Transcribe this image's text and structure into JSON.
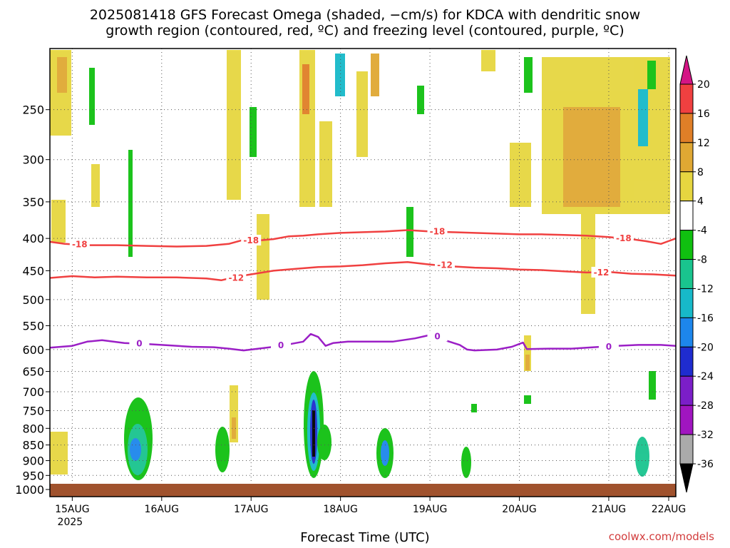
{
  "title_line1": "2025081418 GFS Forecast Omega (shaded, −cm/s) for KDCA with dendritic snow",
  "title_line2": "growth region (contoured, red, ºC) and freezing level (contoured, purple, ºC)",
  "xlabel": "Forecast Time (UTC)",
  "credit": "coolwx.com/models",
  "colors": {
    "snow_contour": "#f04040",
    "freezing_contour": "#9b1fc6",
    "ground": "#a0522d",
    "grid": "#555555"
  },
  "chart_data": {
    "type": "heatmap",
    "title": "2025081418 GFS Forecast Omega (shaded, −cm/s) for KDCA with dendritic snow growth region (contoured, red, ºC) and freezing level (contoured, purple, ºC)",
    "xlabel": "Forecast Time (UTC)",
    "ylabel": "",
    "x_range_hours": [
      0,
      168
    ],
    "y_range_hPa": [
      1000,
      200
    ],
    "y_scale": "log-pressure",
    "grid": true,
    "x_ticks": [
      {
        "label": "15AUG",
        "sub": "2025",
        "hour": 6
      },
      {
        "label": "16AUG",
        "sub": "",
        "hour": 30
      },
      {
        "label": "17AUG",
        "sub": "",
        "hour": 54
      },
      {
        "label": "18AUG",
        "sub": "",
        "hour": 78
      },
      {
        "label": "19AUG",
        "sub": "",
        "hour": 102
      },
      {
        "label": "20AUG",
        "sub": "",
        "hour": 126
      },
      {
        "label": "21AUG",
        "sub": "",
        "hour": 150
      },
      {
        "label": "22AUG",
        "sub": "",
        "hour": 174
      }
    ],
    "y_ticks": [
      250,
      300,
      350,
      400,
      450,
      500,
      550,
      600,
      650,
      700,
      750,
      800,
      850,
      900,
      950,
      1000
    ],
    "colorbar": {
      "labels": [
        "20",
        "16",
        "12",
        "8",
        "4",
        "-4",
        "-8",
        "-12",
        "-16",
        "-20",
        "-24",
        "-28",
        "-32",
        "-36"
      ],
      "bins": [
        {
          "color": "#d41585"
        },
        {
          "color": "#f04040"
        },
        {
          "color": "#e07f27"
        },
        {
          "color": "#e0a833"
        },
        {
          "color": "#e6d640"
        },
        {
          "color": "#ffffff"
        },
        {
          "color": "#10c010"
        },
        {
          "color": "#19c48e"
        },
        {
          "color": "#17b9c9"
        },
        {
          "color": "#1d86ec"
        },
        {
          "color": "#1f2ccf"
        },
        {
          "color": "#7b1ec8"
        },
        {
          "color": "#a015c0"
        },
        {
          "color": "#aaaaaa"
        },
        {
          "color": "#000000"
        }
      ]
    },
    "contours": [
      {
        "name": "-18",
        "color": "#f04040",
        "points": [
          [
            0,
            405
          ],
          [
            4,
            408
          ],
          [
            10,
            410
          ],
          [
            18,
            410
          ],
          [
            26,
            411
          ],
          [
            34,
            412
          ],
          [
            42,
            411
          ],
          [
            48,
            408
          ],
          [
            52,
            402
          ],
          [
            56,
            403
          ],
          [
            60,
            401
          ],
          [
            64,
            397
          ],
          [
            68,
            396
          ],
          [
            72,
            394
          ],
          [
            78,
            392
          ],
          [
            84,
            391
          ],
          [
            90,
            390
          ],
          [
            96,
            388
          ],
          [
            102,
            390
          ],
          [
            108,
            391
          ],
          [
            114,
            392
          ],
          [
            120,
            393
          ],
          [
            126,
            394
          ],
          [
            132,
            394
          ],
          [
            138,
            395
          ],
          [
            144,
            396
          ],
          [
            150,
            398
          ],
          [
            156,
            401
          ],
          [
            160,
            404
          ],
          [
            164,
            408
          ],
          [
            166,
            404
          ],
          [
            168,
            400
          ]
        ],
        "labels": [
          [
            8,
            409
          ],
          [
            54,
            403
          ],
          [
            104,
            390
          ],
          [
            154,
            400
          ]
        ]
      },
      {
        "name": "-12",
        "color": "#f04040",
        "points": [
          [
            0,
            462
          ],
          [
            6,
            459
          ],
          [
            12,
            461
          ],
          [
            18,
            460
          ],
          [
            26,
            461
          ],
          [
            34,
            461
          ],
          [
            42,
            463
          ],
          [
            46,
            466
          ],
          [
            50,
            460
          ],
          [
            54,
            456
          ],
          [
            60,
            450
          ],
          [
            66,
            447
          ],
          [
            72,
            444
          ],
          [
            78,
            443
          ],
          [
            84,
            441
          ],
          [
            90,
            438
          ],
          [
            96,
            436
          ],
          [
            102,
            440
          ],
          [
            108,
            443
          ],
          [
            114,
            445
          ],
          [
            120,
            446
          ],
          [
            126,
            448
          ],
          [
            132,
            449
          ],
          [
            138,
            451
          ],
          [
            144,
            453
          ],
          [
            150,
            452
          ],
          [
            156,
            455
          ],
          [
            162,
            456
          ],
          [
            168,
            458
          ]
        ],
        "labels": [
          [
            50,
            462
          ],
          [
            106,
            441
          ],
          [
            148,
            453
          ]
        ]
      },
      {
        "name": "0",
        "color": "#9b1fc6",
        "points": [
          [
            0,
            596
          ],
          [
            6,
            592
          ],
          [
            10,
            583
          ],
          [
            14,
            580
          ],
          [
            20,
            586
          ],
          [
            26,
            588
          ],
          [
            32,
            591
          ],
          [
            38,
            594
          ],
          [
            44,
            595
          ],
          [
            48,
            598
          ],
          [
            52,
            602
          ],
          [
            56,
            598
          ],
          [
            60,
            594
          ],
          [
            64,
            589
          ],
          [
            68,
            583
          ],
          [
            70,
            567
          ],
          [
            72,
            573
          ],
          [
            74,
            592
          ],
          [
            76,
            586
          ],
          [
            80,
            583
          ],
          [
            86,
            583
          ],
          [
            92,
            583
          ],
          [
            98,
            576
          ],
          [
            102,
            569
          ],
          [
            106,
            580
          ],
          [
            110,
            590
          ],
          [
            112,
            600
          ],
          [
            114,
            602
          ],
          [
            120,
            600
          ],
          [
            124,
            594
          ],
          [
            127,
            585
          ],
          [
            128,
            599
          ],
          [
            134,
            598
          ],
          [
            140,
            598
          ],
          [
            146,
            595
          ],
          [
            152,
            592
          ],
          [
            158,
            590
          ],
          [
            164,
            590
          ],
          [
            168,
            592
          ]
        ],
        "labels": [
          [
            24,
            587
          ],
          [
            62,
            591
          ],
          [
            104,
            572
          ],
          [
            150,
            594
          ]
        ]
      }
    ]
  }
}
